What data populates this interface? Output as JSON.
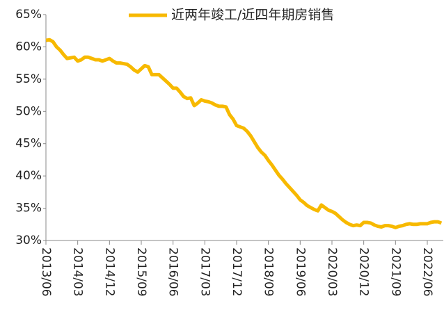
{
  "chart_data": {
    "type": "line",
    "categories": [
      "2013/06",
      null,
      null,
      null,
      null,
      null,
      null,
      null,
      null,
      "2014/03",
      null,
      null,
      null,
      null,
      null,
      null,
      null,
      null,
      "2014/12",
      null,
      null,
      null,
      null,
      null,
      null,
      null,
      null,
      "2015/09",
      null,
      null,
      null,
      null,
      null,
      null,
      null,
      null,
      "2016/06",
      null,
      null,
      null,
      null,
      null,
      null,
      null,
      null,
      "2017/03",
      null,
      null,
      null,
      null,
      null,
      null,
      null,
      null,
      "2017/12",
      null,
      null,
      null,
      null,
      null,
      null,
      null,
      null,
      "2018/09",
      null,
      null,
      null,
      null,
      null,
      null,
      null,
      null,
      "2019/06",
      null,
      null,
      null,
      null,
      null,
      null,
      null,
      null,
      "2020/03",
      null,
      null,
      null,
      null,
      null,
      null,
      null,
      null,
      "2020/12",
      null,
      null,
      null,
      null,
      null,
      null,
      null,
      null,
      "2021/09",
      null,
      null,
      null,
      null,
      null,
      null,
      null,
      null,
      "2022/06",
      null,
      null,
      null,
      null
    ],
    "series": [
      {
        "name": "近两年竣工/近四年期房销售",
        "color": "#f7b900",
        "values": [
          61.0,
          61.1,
          60.8,
          60.0,
          59.5,
          58.8,
          58.2,
          58.3,
          58.4,
          57.8,
          58.0,
          58.4,
          58.4,
          58.2,
          58.0,
          58.0,
          57.8,
          58.0,
          58.2,
          57.8,
          57.5,
          57.5,
          57.4,
          57.3,
          56.9,
          56.4,
          56.1,
          56.6,
          57.1,
          56.9,
          55.7,
          55.7,
          55.7,
          55.2,
          54.7,
          54.2,
          53.6,
          53.6,
          53.0,
          52.3,
          52.0,
          52.1,
          50.9,
          51.3,
          51.8,
          51.6,
          51.5,
          51.3,
          51.0,
          50.8,
          50.8,
          50.7,
          49.5,
          48.8,
          47.8,
          47.6,
          47.4,
          46.9,
          46.2,
          45.3,
          44.4,
          43.7,
          43.2,
          42.4,
          41.7,
          40.9,
          40.1,
          39.5,
          38.8,
          38.2,
          37.6,
          37.0,
          36.3,
          35.9,
          35.4,
          35.1,
          34.8,
          34.6,
          35.5,
          35.1,
          34.7,
          34.5,
          34.2,
          33.7,
          33.2,
          32.8,
          32.5,
          32.3,
          32.4,
          32.3,
          32.8,
          32.8,
          32.7,
          32.4,
          32.2,
          32.1,
          32.3,
          32.3,
          32.2,
          32.0,
          32.2,
          32.3,
          32.5,
          32.6,
          32.5,
          32.5,
          32.6,
          32.6,
          32.6,
          32.8,
          32.9,
          32.9,
          32.7
        ]
      }
    ],
    "ylim": [
      30,
      65
    ],
    "yticks": [
      {
        "value": 30,
        "label": "30%"
      },
      {
        "value": 35,
        "label": "35%"
      },
      {
        "value": 40,
        "label": "40%"
      },
      {
        "value": 45,
        "label": "45%"
      },
      {
        "value": 50,
        "label": "50%"
      },
      {
        "value": 55,
        "label": "55%"
      },
      {
        "value": 60,
        "label": "60%"
      },
      {
        "value": 65,
        "label": "65%"
      }
    ],
    "legend": "top"
  }
}
